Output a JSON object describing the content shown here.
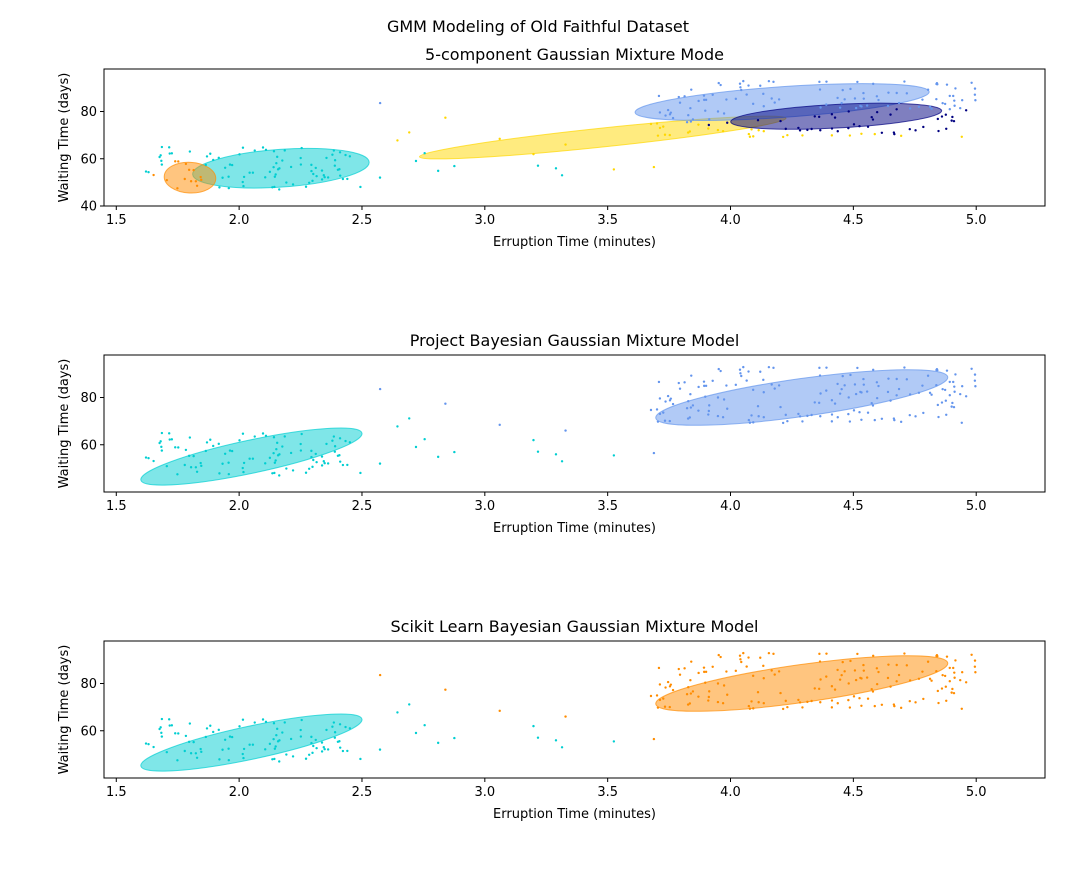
{
  "figure": {
    "suptitle": "GMM Modeling of Old Faithful Dataset"
  },
  "chart_data": [
    {
      "type": "scatter",
      "title": "5-component Gaussian Mixture Mode",
      "xlabel": "Erruption Time (minutes)",
      "ylabel": "Waiting Time (days)",
      "xlim": [
        1.45,
        5.28
      ],
      "ylim": [
        40,
        98
      ],
      "xticks": [
        1.5,
        2.0,
        2.5,
        3.0,
        3.5,
        4.0,
        4.5,
        5.0
      ],
      "xtick_labels": [
        "1.5",
        "2.0",
        "2.5",
        "3.0",
        "3.5",
        "4.0",
        "4.5",
        "5.0"
      ],
      "yticks": [
        40,
        60,
        80
      ],
      "ytick_labels": [
        "40",
        "60",
        "80"
      ],
      "grid": false,
      "components": [
        {
          "name": "",
          "color": "#00CED1",
          "center": [
            2.17,
            56
          ],
          "width": 0.72,
          "height": 16,
          "angle_deg": 4
        },
        {
          "name": "",
          "color": "#FF8C00",
          "center": [
            1.8,
            52
          ],
          "width": 0.21,
          "height": 13,
          "angle_deg": -3
        },
        {
          "name": "",
          "color": "#FFD700",
          "center": [
            3.48,
            69
          ],
          "width": 1.5,
          "height": 8,
          "angle_deg": 6
        },
        {
          "name": "",
          "color": "#6495ED",
          "center": [
            4.21,
            84
          ],
          "width": 1.2,
          "height": 13,
          "angle_deg": 4
        },
        {
          "name": "",
          "color": "#000080",
          "center": [
            4.43,
            78
          ],
          "width": 0.86,
          "height": 10,
          "angle_deg": 3
        }
      ]
    },
    {
      "type": "scatter",
      "title": "Project Bayesian Gaussian Mixture Model",
      "xlabel": "Erruption Time (minutes)",
      "ylabel": "Waiting Time (days)",
      "xlim": [
        1.45,
        5.28
      ],
      "ylim": [
        40,
        98
      ],
      "xticks": [
        1.5,
        2.0,
        2.5,
        3.0,
        3.5,
        4.0,
        4.5,
        5.0
      ],
      "xtick_labels": [
        "1.5",
        "2.0",
        "2.5",
        "3.0",
        "3.5",
        "4.0",
        "4.5",
        "5.0"
      ],
      "yticks": [
        60,
        80
      ],
      "ytick_labels": [
        "60",
        "80"
      ],
      "grid": false,
      "components": [
        {
          "name": "",
          "color": "#00CED1",
          "center": [
            2.05,
            55
          ],
          "width": 0.92,
          "height": 14,
          "angle_deg": 12
        },
        {
          "name": "",
          "color": "#6495ED",
          "center": [
            4.29,
            80
          ],
          "width": 1.2,
          "height": 16,
          "angle_deg": 8
        }
      ]
    },
    {
      "type": "scatter",
      "title": "Scikit Learn Bayesian Gaussian Mixture Model",
      "xlabel": "Erruption Time (minutes)",
      "ylabel": "Waiting Time (days)",
      "xlim": [
        1.45,
        5.28
      ],
      "ylim": [
        40,
        98
      ],
      "xticks": [
        1.5,
        2.0,
        2.5,
        3.0,
        3.5,
        4.0,
        4.5,
        5.0
      ],
      "xtick_labels": [
        "1.5",
        "2.0",
        "2.5",
        "3.0",
        "3.5",
        "4.0",
        "4.5",
        "5.0"
      ],
      "yticks": [
        60,
        80
      ],
      "ytick_labels": [
        "60",
        "80"
      ],
      "grid": false,
      "components": [
        {
          "name": "",
          "color": "#00CED1",
          "center": [
            2.05,
            55
          ],
          "width": 0.92,
          "height": 14,
          "angle_deg": 12
        },
        {
          "name": "",
          "color": "#FF8C00",
          "center": [
            4.29,
            80
          ],
          "width": 1.2,
          "height": 16,
          "angle_deg": 8
        }
      ]
    }
  ]
}
